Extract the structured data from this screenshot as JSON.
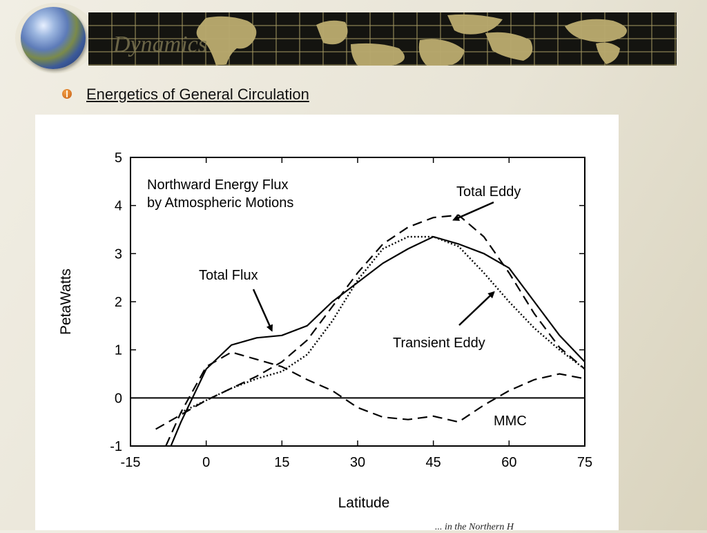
{
  "header": {
    "title": "Dynamics"
  },
  "slide": {
    "heading": "Energetics of General Circulation",
    "footer": "... in the Northern H"
  },
  "colors": {
    "banner_bg": "#141410",
    "grid_line": "#b8aa6e",
    "land": "#b3a46a",
    "bullet": "#d9782a"
  },
  "icons": {
    "globe": "globe-icon",
    "bullet": "bullet-icon"
  },
  "chart_data": {
    "type": "line",
    "title": "Northward Energy Flux",
    "subtitle": "by Atmospheric Motions",
    "xlabel": "Latitude",
    "ylabel": "PetaWatts",
    "xlim": [
      -15,
      75
    ],
    "ylim": [
      -1,
      5
    ],
    "xticks": [
      "-15",
      "0",
      "15",
      "30",
      "45",
      "60",
      "75"
    ],
    "yticks": [
      "-1",
      "0",
      "1",
      "2",
      "3",
      "4",
      "5"
    ],
    "grid": false,
    "series": [
      {
        "name": "Total Flux",
        "style": "solid",
        "x": [
          -7,
          -5,
          0,
          5,
          10,
          15,
          20,
          25,
          30,
          35,
          40,
          45,
          50,
          55,
          60,
          65,
          70,
          75
        ],
        "y": [
          -1.0,
          -0.5,
          0.6,
          1.1,
          1.25,
          1.3,
          1.5,
          2.0,
          2.4,
          2.8,
          3.1,
          3.35,
          3.2,
          3.0,
          2.7,
          2.0,
          1.3,
          0.75
        ]
      },
      {
        "name": "Total Eddy",
        "style": "dashed",
        "x": [
          -10,
          -5,
          0,
          5,
          10,
          15,
          20,
          25,
          30,
          35,
          40,
          45,
          50,
          55,
          60,
          65,
          70,
          75
        ],
        "y": [
          -0.65,
          -0.35,
          -0.05,
          0.2,
          0.45,
          0.75,
          1.2,
          1.9,
          2.6,
          3.2,
          3.55,
          3.75,
          3.8,
          3.35,
          2.6,
          1.75,
          1.05,
          0.6
        ]
      },
      {
        "name": "Transient Eddy",
        "style": "dotted",
        "x": [
          -5,
          0,
          5,
          10,
          15,
          20,
          25,
          30,
          35,
          40,
          45,
          50,
          55,
          60,
          65,
          70,
          75
        ],
        "y": [
          -0.3,
          -0.05,
          0.2,
          0.4,
          0.55,
          0.9,
          1.6,
          2.45,
          3.1,
          3.35,
          3.35,
          3.15,
          2.6,
          2.0,
          1.45,
          1.0,
          0.6
        ]
      },
      {
        "name": "MMC",
        "style": "dashed",
        "x": [
          -8,
          -5,
          0,
          5,
          10,
          15,
          20,
          25,
          30,
          35,
          40,
          45,
          50,
          55,
          60,
          65,
          70,
          75
        ],
        "y": [
          -1.0,
          -0.3,
          0.65,
          0.95,
          0.8,
          0.65,
          0.38,
          0.15,
          -0.2,
          -0.4,
          -0.45,
          -0.38,
          -0.5,
          -0.15,
          0.15,
          0.38,
          0.5,
          0.4
        ]
      }
    ],
    "annotations": [
      {
        "text": "Total Eddy",
        "arrow_to": [
          49,
          3.7
        ]
      },
      {
        "text": "Total Flux",
        "arrow_to": [
          13,
          1.4
        ]
      },
      {
        "text": "Transient Eddy",
        "arrow_to": [
          57,
          2.2
        ]
      },
      {
        "text": "MMC"
      }
    ]
  }
}
